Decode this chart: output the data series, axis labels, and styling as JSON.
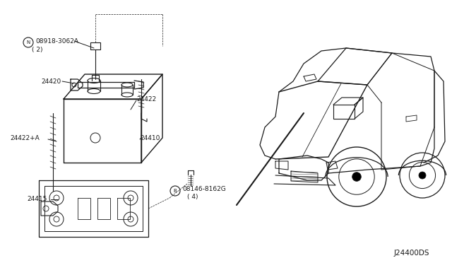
{
  "bg_color": "#ffffff",
  "line_color": "#1a1a1a",
  "diagram_code": "J24400DS",
  "label_N": "N08918-3062A",
  "label_N2": "( 2)",
  "label_24420": "24420",
  "label_24422": "24422",
  "label_24422A": "24422+A",
  "label_24410": "24410",
  "label_24415": "24415",
  "label_B": "B08146-8162G",
  "label_B2": "( 4)"
}
